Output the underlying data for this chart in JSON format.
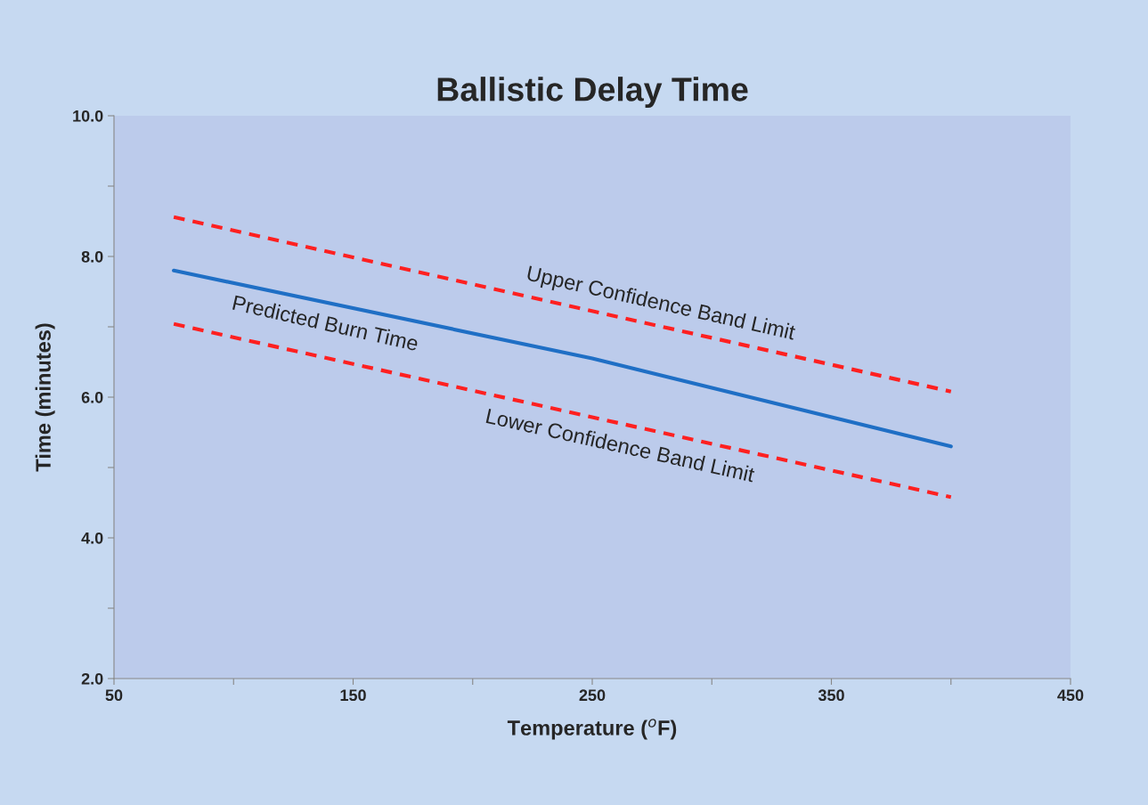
{
  "chart_data": {
    "type": "line",
    "title": "Ballistic Delay Time",
    "xlabel": "Temperature ($^{o}$F)",
    "ylabel": "Time (minutes)",
    "xlim": [
      50,
      450
    ],
    "xticks": [
      50,
      {
        "value": 100,
        "label": null
      },
      150,
      {
        "value": 200,
        "label": null
      },
      250,
      {
        "value": 300,
        "label": null
      },
      350,
      {
        "value": 400,
        "label": null
      },
      450
    ],
    "ylim": [
      2,
      10
    ],
    "yticks": [
      {
        "value": 2,
        "label": "2.0"
      },
      {
        "value": 3,
        "label": null
      },
      {
        "value": 4,
        "label": "4.0"
      },
      {
        "value": 5,
        "label": null
      },
      {
        "value": 6,
        "label": "6.0"
      },
      {
        "value": 7,
        "label": null
      },
      {
        "value": 8,
        "label": "8.0"
      },
      {
        "value": 9,
        "label": null
      },
      {
        "value": 10,
        "label": "10.0"
      }
    ],
    "series": [
      {
        "name": "Upper Confidence Band Limit",
        "color": "#ff2020",
        "line_style": "dashed",
        "x": [
          75,
          400
        ],
        "values": [
          8.56,
          6.08
        ]
      },
      {
        "name": "Predicted Burn Time",
        "color": "#1f6fc5",
        "line_style": "solid",
        "x": [
          75,
          250,
          400
        ],
        "values": [
          7.8,
          6.55,
          5.3
        ]
      },
      {
        "name": "Lower Confidence Band Limit",
        "color": "#ff2020",
        "line_style": "dashed",
        "x": [
          75,
          400
        ],
        "values": [
          7.04,
          4.58
        ]
      }
    ],
    "grid": false,
    "legend": false
  }
}
